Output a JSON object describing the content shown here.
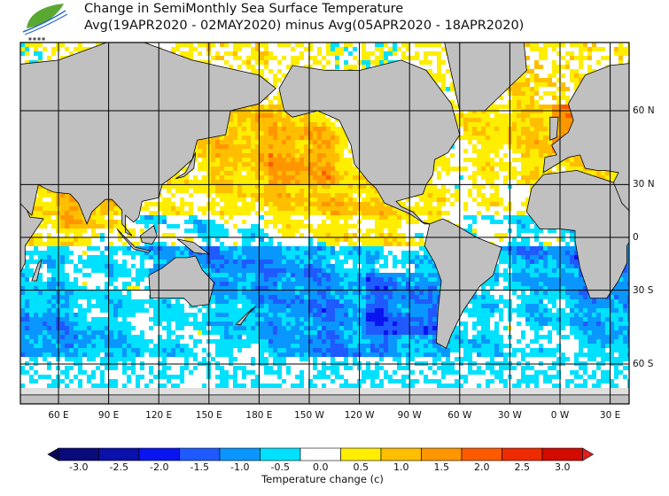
{
  "header": {
    "title_line1": "Change in SemiMonthly Sea Surface Temperature",
    "title_line2": "Avg(19APR2020 - 02MAY2020) minus Avg(05APR2020 - 18APR2020)",
    "logo": "leaf-wave-logo"
  },
  "map": {
    "projection": "mercator",
    "lon_labels": [
      "60 E",
      "90 E",
      "120 E",
      "150 E",
      "180 E",
      "150 W",
      "120 W",
      "90 W",
      "60 W",
      "30 W",
      "0 W",
      "30 E"
    ],
    "lat_labels": [
      "60 N",
      "30 N",
      "0",
      "30 S",
      "60 S"
    ],
    "land_color": "#c0c0c0"
  },
  "colorbar": {
    "title": "Temperature change  (c)",
    "tick_labels": [
      "-3.0",
      "-2.5",
      "-2.0",
      "-1.5",
      "-1.0",
      "-0.5",
      "0.0",
      "0.5",
      "1.0",
      "1.5",
      "2.0",
      "2.5",
      "3.0"
    ],
    "colors": [
      "#0a0a7a",
      "#0a10aa",
      "#0a14f0",
      "#1e5aff",
      "#0a96ff",
      "#00e1ff",
      "#ffffff",
      "#ffee00",
      "#ffbe00",
      "#ff9600",
      "#ff5a00",
      "#ee2a00",
      "#d20a00"
    ]
  }
}
